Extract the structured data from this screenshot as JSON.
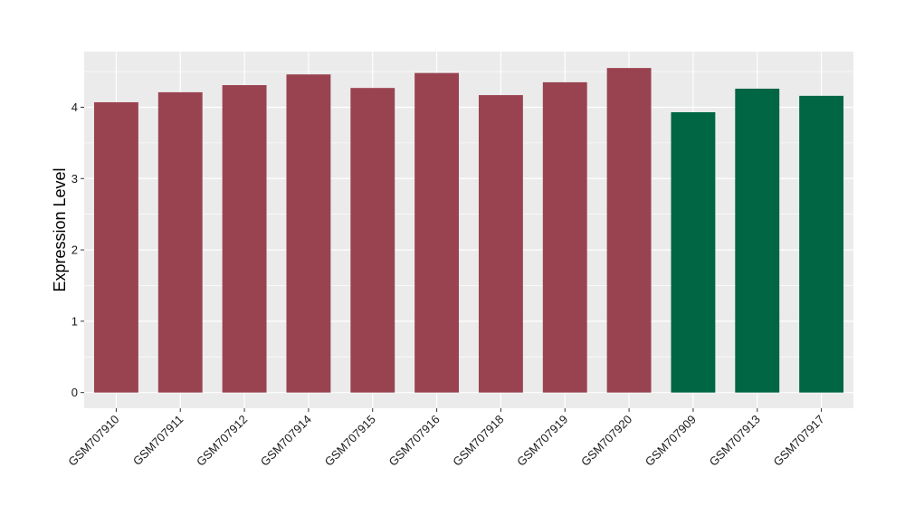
{
  "chart_data": {
    "type": "bar",
    "title": "",
    "xlabel": "",
    "ylabel": "Expression Level",
    "ylim": [
      -0.22,
      4.78
    ],
    "yticks": [
      0,
      1,
      2,
      3,
      4
    ],
    "grid": true,
    "legend": "none",
    "colors": {
      "group_a": "#9a4350",
      "group_b": "#006644",
      "panel": "#ebebeb",
      "gridline": "#ffffff"
    },
    "categories": [
      "GSM707910",
      "GSM707911",
      "GSM707912",
      "GSM707914",
      "GSM707915",
      "GSM707916",
      "GSM707918",
      "GSM707919",
      "GSM707920",
      "GSM707909",
      "GSM707913",
      "GSM707917"
    ],
    "values": [
      4.07,
      4.21,
      4.31,
      4.46,
      4.27,
      4.48,
      4.17,
      4.35,
      4.55,
      3.93,
      4.26,
      4.16
    ],
    "groups": [
      "a",
      "a",
      "a",
      "a",
      "a",
      "a",
      "a",
      "a",
      "a",
      "b",
      "b",
      "b"
    ]
  }
}
